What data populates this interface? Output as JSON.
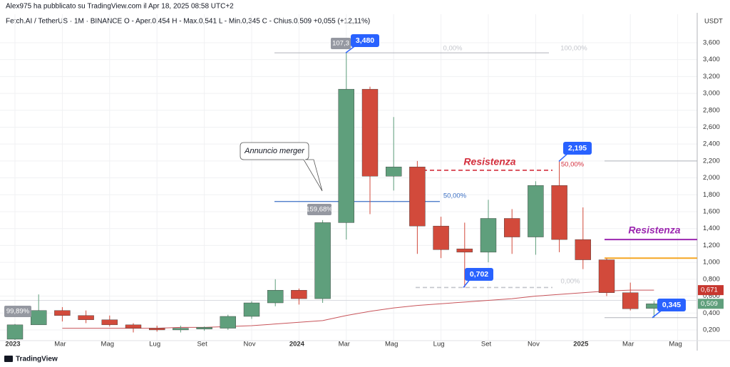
{
  "chart_data": {
    "type": "candlestick",
    "title": "Alex975 ha pubblicato su TradingView.com il Apr 18, 2025 08:58 UTC+2",
    "subtitle": "Fetch.AI / TetherUS · 1M · BINANCE   O - Aper.0,454   H - Max.0,541   L - Min.0,345   C - Chius.0,509   +0,055 (+12,11%)",
    "y_axis_label": "USDT",
    "brand": "TradingView",
    "categories": [
      "2023",
      null,
      "Mar",
      null,
      "Mag",
      null,
      "Lug",
      null,
      "Set",
      null,
      "Nov",
      null,
      "2024",
      null,
      "Mar",
      null,
      "Mag",
      null,
      "Lug",
      null,
      "Set",
      null,
      "Nov",
      null,
      "2025",
      null,
      "Mar",
      null,
      "Mag"
    ],
    "open": [
      0.09,
      0.26,
      0.43,
      0.37,
      0.32,
      0.26,
      0.22,
      0.2,
      0.21,
      0.22,
      0.36,
      0.52,
      0.67,
      0.57,
      1.47,
      3.05,
      2.02,
      2.13,
      1.43,
      1.16,
      1.12,
      1.52,
      1.3,
      1.91,
      1.27,
      1.03,
      0.64,
      0.454,
      null
    ],
    "high": [
      0.27,
      0.62,
      0.47,
      0.43,
      0.37,
      0.28,
      0.25,
      0.25,
      0.24,
      0.38,
      0.54,
      0.8,
      0.69,
      1.5,
      3.48,
      3.08,
      2.72,
      2.2,
      1.54,
      1.47,
      1.74,
      1.63,
      1.96,
      2.195,
      1.65,
      1.05,
      0.76,
      0.541,
      null
    ],
    "low": [
      0.08,
      0.26,
      0.3,
      0.28,
      0.24,
      0.17,
      0.18,
      0.17,
      0.19,
      0.2,
      0.33,
      0.48,
      0.5,
      0.52,
      1.27,
      1.57,
      1.85,
      1.1,
      1.05,
      0.702,
      1.0,
      1.1,
      1.09,
      1.12,
      0.92,
      0.6,
      0.43,
      0.345,
      null
    ],
    "close": [
      0.26,
      0.43,
      0.37,
      0.32,
      0.26,
      0.22,
      0.2,
      0.22,
      0.23,
      0.36,
      0.52,
      0.67,
      0.57,
      1.47,
      3.05,
      2.02,
      2.13,
      1.43,
      1.15,
      1.12,
      1.52,
      1.3,
      1.91,
      1.27,
      1.03,
      0.64,
      0.45,
      0.509,
      null
    ],
    "up_color": "#5f9f7c",
    "down_color": "#d24a3b",
    "ma": {
      "color": "#c8545a",
      "values": [
        null,
        null,
        0.22,
        0.22,
        0.22,
        0.22,
        0.22,
        0.23,
        0.23,
        0.24,
        0.25,
        0.27,
        0.29,
        0.31,
        0.37,
        0.42,
        0.46,
        0.49,
        0.51,
        0.53,
        0.55,
        0.57,
        0.6,
        0.62,
        0.64,
        0.66,
        0.671,
        0.671,
        null
      ]
    },
    "ylim": [
      0.073,
      3.937
    ],
    "yticks": [
      {
        "value": 0.2,
        "label": "0,200"
      },
      {
        "value": 0.4,
        "label": "0,400"
      },
      {
        "value": 0.6,
        "label": "0,600"
      },
      {
        "value": 0.8,
        "label": "0,800"
      },
      {
        "value": 1.0,
        "label": "1,000"
      },
      {
        "value": 1.2,
        "label": "1,200"
      },
      {
        "value": 1.4,
        "label": "1,400"
      },
      {
        "value": 1.6,
        "label": "1,600"
      },
      {
        "value": 1.8,
        "label": "1,800"
      },
      {
        "value": 2.0,
        "label": "2,000"
      },
      {
        "value": 2.2,
        "label": "2,200"
      },
      {
        "value": 2.4,
        "label": "2,400"
      },
      {
        "value": 2.6,
        "label": "2,600"
      },
      {
        "value": 2.8,
        "label": "2,800"
      },
      {
        "value": 3.0,
        "label": "3,000"
      },
      {
        "value": 3.2,
        "label": "3,200"
      },
      {
        "value": 3.4,
        "label": "3,400"
      },
      {
        "value": 3.6,
        "label": "3,600"
      }
    ],
    "grid": true,
    "levels": [
      {
        "value": 3.48,
        "color": "#b0b3ba"
      },
      {
        "value": 2.09,
        "color": "#d4303e"
      },
      {
        "value": 1.72,
        "color": "#3b6fc4"
      },
      {
        "value": 0.702,
        "color": "#c4c6cc"
      },
      {
        "value": 1.27,
        "color": "#9c27b0"
      },
      {
        "value": 1.05,
        "color": "#f5a623"
      },
      {
        "value": 2.2,
        "color": "#b0b3ba"
      },
      {
        "value": 0.345,
        "color": "#b0b3ba"
      },
      {
        "value": 0.55,
        "color": "#d9dbe0"
      }
    ],
    "price_badges": [
      {
        "value": 3.48,
        "label": "3,480"
      },
      {
        "value": 2.195,
        "label": "2,195"
      },
      {
        "value": 0.702,
        "label": "0,702"
      },
      {
        "value": 0.345,
        "label": "0,345"
      }
    ],
    "axis_badges": [
      {
        "value": 0.671,
        "label": "0,671",
        "color": "#c7372f"
      },
      {
        "value": 0.509,
        "label": "0,509",
        "color": "#5f9f7c"
      }
    ],
    "gray_tags": [
      "107,3",
      "159,68%",
      "99,89%"
    ],
    "fib_labels": [
      "0,00%",
      "100,00%",
      "50,00%",
      "50,00%",
      "0,00%"
    ],
    "annotations": [
      "Resistenza",
      "Resistenza",
      "Annuncio merger"
    ]
  }
}
